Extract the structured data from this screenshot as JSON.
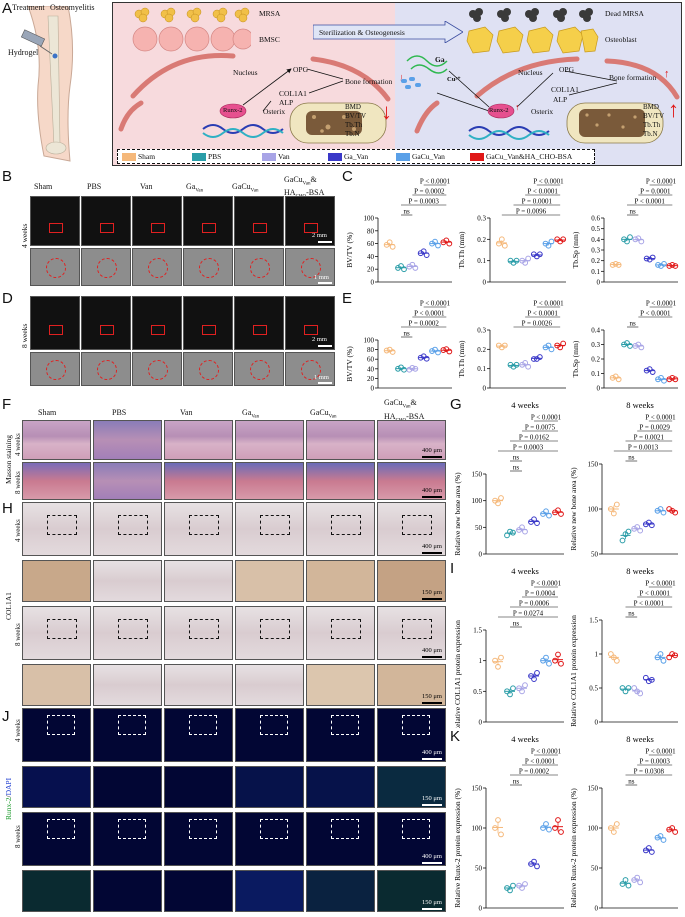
{
  "panel_labels": {
    "A": "A",
    "B": "B",
    "C": "C",
    "D": "D",
    "E": "E",
    "F": "F",
    "G": "G",
    "H": "H",
    "I": "I",
    "J": "J",
    "K": "K"
  },
  "schematic": {
    "treatment": "Treatment",
    "osteomyelitis": "Osteomyelitis",
    "hydrogel": "Hydrogel",
    "mrsa": "MRSA",
    "bmsc": "BMSC",
    "arrow_label": "Sterilization & Osteogenesis",
    "dead_mrsa": "Dead MRSA",
    "osteoblast": "Osteoblast",
    "nucleus_left": "Nucleus",
    "nucleus_right": "Nucleus",
    "opg_left": "OPG",
    "opg_right": "OPG",
    "col_left": "COL1A1",
    "alp_left": "ALP",
    "col_right": "COL1A1",
    "alp_right": "ALP",
    "bone_formation_left": "Bone formation",
    "bone_formation_right": "Bone formation",
    "runx_left": "Runx-2",
    "runx_right": "Runx-2",
    "osterix_left": "Osterix",
    "osterix_right": "Osterix",
    "ga": "Ga",
    "cu": "Cu²⁺",
    "metrics_left": [
      "BMD",
      "BV/TV",
      "Tb.Th",
      "Tb.N"
    ],
    "metrics_right": [
      "BMD",
      "BV/TV",
      "Tb.Th",
      "Tb.N"
    ],
    "legend": [
      {
        "label": "Sham",
        "color": "#f5b87a"
      },
      {
        "label": "PBS",
        "color": "#2a9da8"
      },
      {
        "label": "Van",
        "color": "#a8a4e6"
      },
      {
        "label": "Ga_Van",
        "color": "#3a38c8"
      },
      {
        "label": "GaCu_Van",
        "color": "#5aa0e8"
      },
      {
        "label": "GaCu_Van&HA_CHO-BSA",
        "color": "#e01818"
      }
    ]
  },
  "groups": [
    "Sham",
    "PBS",
    "Van",
    "GaVan",
    "GaCuVan",
    "GaCuVan&HACHO-BSA"
  ],
  "group_headers": {
    "sham": "Sham",
    "pbs": "PBS",
    "van": "Van",
    "ga": "Ga",
    "ga_sub": "Van",
    "gacu": "GaCu",
    "gacu_sub": "Van",
    "combo1": "GaCu",
    "combo1_sub": "Van",
    "combo_amp": "&",
    "combo2": "HA",
    "combo2_sub": "CHO",
    "combo2_tail": "-BSA"
  },
  "row_labels": {
    "b_top": "4 weeks",
    "b_bottom": "8 weeks",
    "f_top": "4 weeks",
    "f_bottom": "8 weeks",
    "f_side": "Masson staining",
    "h_top": "4 weeks",
    "h_bottom": "8 weeks",
    "h_side": "COL1A1",
    "j_top": "4 weeks",
    "j_bottom": "8 weeks",
    "j_side_green": "Runx-2",
    "j_side_slash": "/",
    "j_side_blue": "DAPI"
  },
  "scale_bars": {
    "b_top": "2 mm",
    "b_bottom": "1 mm",
    "d_top": "2 mm",
    "d_bottom": "1 mm",
    "f_top": "400 μm",
    "f_bottom": "400 μm",
    "h1": "400 μm",
    "h2": "150 μm",
    "h3": "400 μm",
    "h4": "150 μm",
    "j1": "400 μm",
    "j2": "150 μm",
    "j3": "400 μm",
    "j4": "150 μm"
  },
  "colors": {
    "sham": "#f5b87a",
    "pbs": "#2a9da8",
    "van": "#a8a4e6",
    "ga": "#3a38c8",
    "gacu": "#5aa0e8",
    "combo": "#e01818"
  },
  "chart_data": [
    {
      "id": "C1",
      "type": "scatter",
      "ylabel": "BV/TV (%)",
      "ylim": [
        0,
        100
      ],
      "yticks": [
        0,
        20,
        40,
        60,
        80,
        100
      ],
      "series": [
        {
          "values": [
            58,
            62,
            55
          ]
        },
        {
          "values": [
            22,
            25,
            20
          ]
        },
        {
          "values": [
            24,
            27,
            22
          ]
        },
        {
          "values": [
            45,
            48,
            42
          ]
        },
        {
          "values": [
            60,
            63,
            57
          ]
        },
        {
          "values": [
            62,
            65,
            60
          ]
        }
      ],
      "annotations": [
        "P < 0.0001",
        "P = 0.0002",
        "P = 0.0003",
        "ns"
      ]
    },
    {
      "id": "C2",
      "type": "scatter",
      "ylabel": "Tb.Th (mm)",
      "ylim": [
        0,
        0.3
      ],
      "yticks": [
        0.0,
        0.1,
        0.2,
        0.3
      ],
      "series": [
        {
          "values": [
            0.18,
            0.2,
            0.17
          ]
        },
        {
          "values": [
            0.1,
            0.09,
            0.1
          ]
        },
        {
          "values": [
            0.1,
            0.09,
            0.11
          ]
        },
        {
          "values": [
            0.13,
            0.12,
            0.13
          ]
        },
        {
          "values": [
            0.18,
            0.17,
            0.19
          ]
        },
        {
          "values": [
            0.2,
            0.19,
            0.2
          ]
        }
      ],
      "annotations": [
        "P < 0.0001",
        "P < 0.0001",
        "P = 0.0001",
        "P = 0.0096"
      ]
    },
    {
      "id": "C3",
      "type": "scatter",
      "ylabel": "Tb.Sp (mm)",
      "ylim": [
        0,
        0.6
      ],
      "yticks": [
        0.0,
        0.1,
        0.2,
        0.3,
        0.4,
        0.5,
        0.6
      ],
      "series": [
        {
          "values": [
            0.16,
            0.17,
            0.16
          ]
        },
        {
          "values": [
            0.4,
            0.38,
            0.42
          ]
        },
        {
          "values": [
            0.4,
            0.41,
            0.38
          ]
        },
        {
          "values": [
            0.22,
            0.21,
            0.23
          ]
        },
        {
          "values": [
            0.16,
            0.15,
            0.17
          ]
        },
        {
          "values": [
            0.15,
            0.16,
            0.15
          ]
        }
      ],
      "annotations": [
        "P < 0.0001",
        "P = 0.0001",
        "P < 0.0001",
        "ns"
      ]
    },
    {
      "id": "E1",
      "type": "scatter",
      "ylabel": "BV/TV (%)",
      "ylim": [
        0,
        100
      ],
      "yticks": [
        0,
        20,
        40,
        60,
        80,
        100
      ],
      "series": [
        {
          "values": [
            78,
            80,
            75
          ]
        },
        {
          "values": [
            40,
            43,
            38
          ]
        },
        {
          "values": [
            38,
            42,
            40
          ]
        },
        {
          "values": [
            63,
            66,
            61
          ]
        },
        {
          "values": [
            77,
            80,
            74
          ]
        },
        {
          "values": [
            79,
            81,
            76
          ]
        }
      ],
      "annotations": [
        "P < 0.0001",
        "P < 0.0001",
        "P = 0.0002",
        "ns"
      ]
    },
    {
      "id": "E2",
      "type": "scatter",
      "ylabel": "Tb.Th (mm)",
      "ylim": [
        0,
        0.3
      ],
      "yticks": [
        0.0,
        0.1,
        0.2,
        0.3
      ],
      "series": [
        {
          "values": [
            0.22,
            0.21,
            0.22
          ]
        },
        {
          "values": [
            0.12,
            0.11,
            0.12
          ]
        },
        {
          "values": [
            0.12,
            0.13,
            0.11
          ]
        },
        {
          "values": [
            0.15,
            0.15,
            0.16
          ]
        },
        {
          "values": [
            0.21,
            0.22,
            0.2
          ]
        },
        {
          "values": [
            0.22,
            0.21,
            0.23
          ]
        }
      ],
      "annotations": [
        "P < 0.0001",
        "P < 0.0001",
        "P = 0.0026"
      ]
    },
    {
      "id": "E3",
      "type": "scatter",
      "ylabel": "Tb.Sp (mm)",
      "ylim": [
        0,
        0.4
      ],
      "yticks": [
        0.0,
        0.1,
        0.2,
        0.3,
        0.4
      ],
      "series": [
        {
          "values": [
            0.07,
            0.08,
            0.06
          ]
        },
        {
          "values": [
            0.3,
            0.31,
            0.29
          ]
        },
        {
          "values": [
            0.29,
            0.3,
            0.28
          ]
        },
        {
          "values": [
            0.12,
            0.13,
            0.11
          ]
        },
        {
          "values": [
            0.06,
            0.07,
            0.05
          ]
        },
        {
          "values": [
            0.06,
            0.07,
            0.06
          ]
        }
      ],
      "annotations": [
        "P < 0.0001",
        "P < 0.0001",
        "ns"
      ]
    },
    {
      "id": "G1",
      "type": "scatter",
      "title": "4 weeks",
      "ylabel": "Relative new bone area (%)",
      "ylim": [
        0,
        150
      ],
      "yticks": [
        0,
        50,
        100,
        150
      ],
      "series": [
        {
          "values": [
            100,
            95,
            105
          ]
        },
        {
          "values": [
            35,
            42,
            40
          ]
        },
        {
          "values": [
            45,
            50,
            42
          ]
        },
        {
          "values": [
            60,
            65,
            58
          ]
        },
        {
          "values": [
            75,
            80,
            72
          ]
        },
        {
          "values": [
            78,
            82,
            75
          ]
        }
      ],
      "annotations": [
        "P < 0.0001",
        "P = 0.0075",
        "P = 0.0162",
        "P = 0.0003",
        "ns",
        "ns"
      ]
    },
    {
      "id": "G2",
      "type": "scatter",
      "title": "8 weeks",
      "ylabel": "Relative new bone area (%)",
      "ylim": [
        50,
        150
      ],
      "yticks": [
        50,
        100,
        150
      ],
      "series": [
        {
          "values": [
            100,
            95,
            105
          ]
        },
        {
          "values": [
            65,
            72,
            75
          ]
        },
        {
          "values": [
            78,
            80,
            76
          ]
        },
        {
          "values": [
            83,
            85,
            82
          ]
        },
        {
          "values": [
            98,
            100,
            96
          ]
        },
        {
          "values": [
            100,
            98,
            96
          ]
        }
      ],
      "annotations": [
        "P < 0.0001",
        "P = 0.0029",
        "P = 0.0021",
        "P = 0.0013",
        "ns"
      ]
    },
    {
      "id": "I1",
      "type": "scatter",
      "title": "4 weeks",
      "ylabel": "Relative COL1A1 protein expression",
      "ylim": [
        0,
        1.5
      ],
      "yticks": [
        0.0,
        0.5,
        1.0,
        1.5
      ],
      "series": [
        {
          "values": [
            1.0,
            0.9,
            1.05
          ]
        },
        {
          "values": [
            0.5,
            0.45,
            0.55
          ]
        },
        {
          "values": [
            0.55,
            0.5,
            0.6
          ]
        },
        {
          "values": [
            0.75,
            0.7,
            0.8
          ]
        },
        {
          "values": [
            1.0,
            1.05,
            0.95
          ]
        },
        {
          "values": [
            1.0,
            1.1,
            0.95
          ]
        }
      ],
      "annotations": [
        "P < 0.0001",
        "P = 0.0004",
        "P = 0.0006",
        "P = 0.0274",
        "ns"
      ]
    },
    {
      "id": "I2",
      "type": "scatter",
      "title": "8 weeks",
      "ylabel": "Relative COL1A1 protein expression",
      "ylim": [
        0,
        1.5
      ],
      "yticks": [
        0.0,
        0.5,
        1.0,
        1.5
      ],
      "series": [
        {
          "values": [
            1.0,
            0.95,
            0.9
          ]
        },
        {
          "values": [
            0.5,
            0.45,
            0.5
          ]
        },
        {
          "values": [
            0.5,
            0.45,
            0.42
          ]
        },
        {
          "values": [
            0.65,
            0.6,
            0.62
          ]
        },
        {
          "values": [
            0.95,
            1.0,
            0.9
          ]
        },
        {
          "values": [
            0.95,
            1.0,
            0.98
          ]
        }
      ],
      "annotations": [
        "P < 0.0001",
        "P < 0.0001",
        "P < 0.0001",
        "ns"
      ]
    },
    {
      "id": "K1",
      "type": "scatter",
      "title": "4 weeks",
      "ylabel": "Relative Runx-2 protein expression (%)",
      "ylim": [
        0,
        150
      ],
      "yticks": [
        0,
        50,
        100,
        150
      ],
      "series": [
        {
          "values": [
            100,
            110,
            92
          ]
        },
        {
          "values": [
            25,
            22,
            28
          ]
        },
        {
          "values": [
            28,
            25,
            30
          ]
        },
        {
          "values": [
            55,
            58,
            52
          ]
        },
        {
          "values": [
            100,
            105,
            98
          ]
        },
        {
          "values": [
            100,
            110,
            95
          ]
        }
      ],
      "annotations": [
        "P < 0.0001",
        "P < 0.0001",
        "P = 0.0002",
        "ns"
      ]
    },
    {
      "id": "K2",
      "type": "scatter",
      "title": "8 weeks",
      "ylabel": "Relative Runx-2 protein expression (%)",
      "ylim": [
        0,
        150
      ],
      "yticks": [
        0,
        50,
        100,
        150
      ],
      "series": [
        {
          "values": [
            100,
            95,
            105
          ]
        },
        {
          "values": [
            30,
            35,
            28
          ]
        },
        {
          "values": [
            35,
            38,
            32
          ]
        },
        {
          "values": [
            72,
            75,
            70
          ]
        },
        {
          "values": [
            88,
            90,
            85
          ]
        },
        {
          "values": [
            98,
            100,
            95
          ]
        }
      ],
      "annotations": [
        "P < 0.0001",
        "P = 0.0003",
        "P = 0.0308",
        "ns"
      ]
    }
  ]
}
